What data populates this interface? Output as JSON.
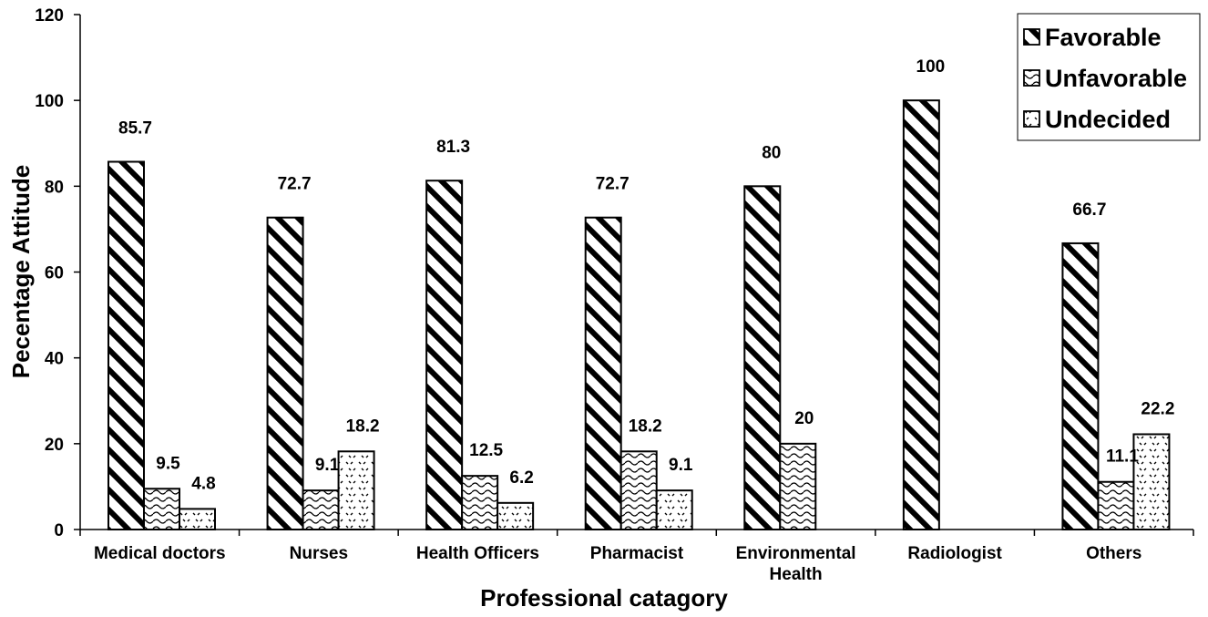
{
  "chart_data": {
    "type": "bar",
    "xlabel": "Professional catagory",
    "ylabel": "Pecentage Attitude",
    "ylim": [
      0,
      120
    ],
    "yticks": [
      0,
      20,
      40,
      60,
      80,
      100,
      120
    ],
    "grid": false,
    "legend_position": "top-right",
    "categories": [
      [
        "Medical doctors"
      ],
      [
        "Nurses"
      ],
      [
        "Health Officers"
      ],
      [
        "Pharmacist"
      ],
      [
        "Environmental",
        "Health"
      ],
      [
        "Radiologist"
      ],
      [
        "Others"
      ]
    ],
    "series": [
      {
        "name": "Favorable",
        "pattern": "diagonal-hatch",
        "values": [
          85.7,
          72.7,
          81.3,
          72.7,
          80,
          100,
          66.7
        ],
        "labels": [
          "85.7",
          "72.7",
          "81.3",
          "72.7",
          "80",
          "100",
          "66.7"
        ]
      },
      {
        "name": "Unfavorable",
        "pattern": "wave",
        "values": [
          9.5,
          9.1,
          12.5,
          18.2,
          20,
          null,
          11.1
        ],
        "labels": [
          "9.5",
          "9.1",
          "12.5",
          "18.2",
          "20",
          null,
          "11.1"
        ]
      },
      {
        "name": "Undecided",
        "pattern": "dots",
        "values": [
          4.8,
          18.2,
          6.2,
          9.1,
          null,
          null,
          22.2
        ],
        "labels": [
          "4.8",
          "18.2",
          "6.2",
          "9.1",
          null,
          null,
          "22.2"
        ]
      }
    ]
  }
}
